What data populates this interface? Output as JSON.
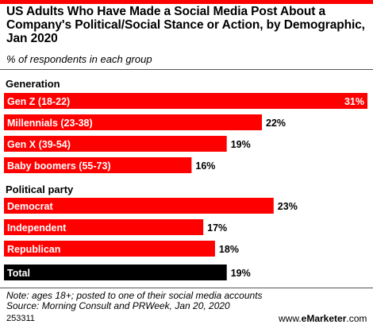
{
  "header": {
    "title": "US Adults Who Have Made a Social Media Post About a Company's Political/Social Stance or Action, by Demographic, Jan 2020",
    "subtitle": "% of respondents in each group"
  },
  "footer": {
    "note": "Note: ages 18+; posted to one of their social media accounts",
    "source": "Source: Morning Consult and PRWeek, Jan 20, 2020",
    "chart_id": "253311",
    "brand_prefix": "www.",
    "brand_name": "eMarketer",
    "brand_suffix": ".com"
  },
  "colors": {
    "bar": "#ff0000",
    "total_bar": "#000000",
    "rule": "#ff0000"
  },
  "chart_data": {
    "type": "bar",
    "orientation": "horizontal",
    "unit": "%",
    "xlim": [
      0,
      31
    ],
    "grid": false,
    "groups": [
      {
        "name": "Generation",
        "items": [
          {
            "label": "Gen Z (18-22)",
            "value": 31,
            "display": "31%"
          },
          {
            "label": "Millennials (23-38)",
            "value": 22,
            "display": "22%"
          },
          {
            "label": "Gen X (39-54)",
            "value": 19,
            "display": "19%"
          },
          {
            "label": "Baby boomers (55-73)",
            "value": 16,
            "display": "16%"
          }
        ]
      },
      {
        "name": "Political party",
        "items": [
          {
            "label": "Democrat",
            "value": 23,
            "display": "23%"
          },
          {
            "label": "Independent",
            "value": 17,
            "display": "17%"
          },
          {
            "label": "Republican",
            "value": 18,
            "display": "18%"
          }
        ]
      }
    ],
    "total": {
      "label": "Total",
      "value": 19,
      "display": "19%"
    }
  }
}
